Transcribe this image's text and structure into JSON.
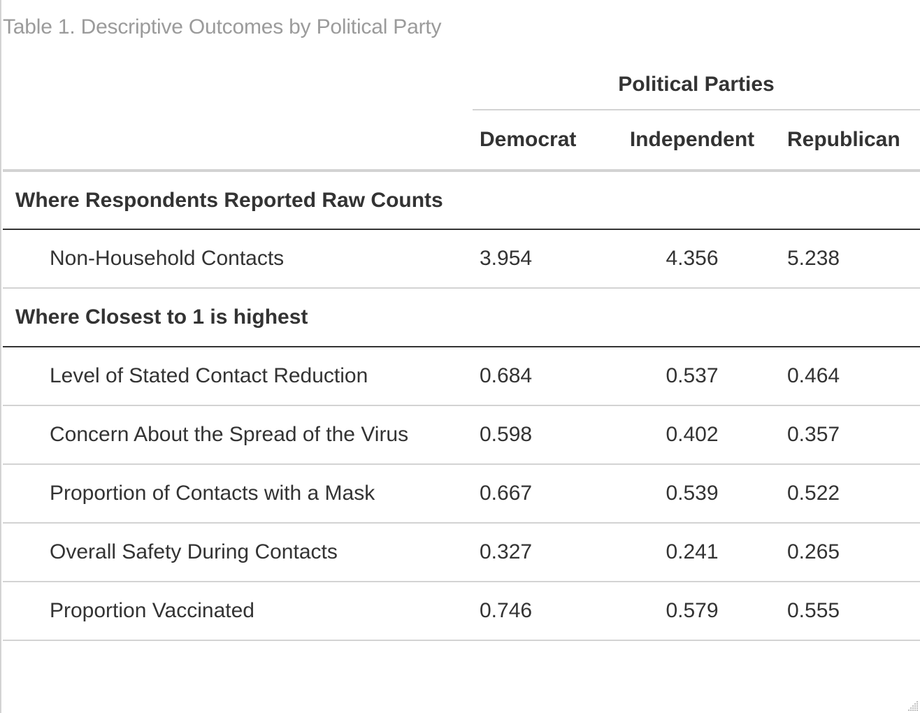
{
  "caption": "Table 1. Descriptive Outcomes by Political Party",
  "table": {
    "spanner": "Political Parties",
    "columns": [
      "Democrat",
      "Independent",
      "Republican"
    ],
    "groups": [
      {
        "label": "Where Respondents Reported Raw Counts",
        "rows": [
          {
            "label": "Non-Household Contacts",
            "values": [
              "3.954",
              "4.356",
              "5.238"
            ]
          }
        ]
      },
      {
        "label": "Where Closest to 1 is highest",
        "rows": [
          {
            "label": "Level of Stated Contact Reduction",
            "values": [
              "0.684",
              "0.537",
              "0.464"
            ]
          },
          {
            "label": "Concern About the Spread of the Virus",
            "values": [
              "0.598",
              "0.402",
              "0.357"
            ]
          },
          {
            "label": "Proportion of Contacts with a Mask",
            "values": [
              "0.667",
              "0.539",
              "0.522"
            ]
          },
          {
            "label": "Overall Safety During Contacts",
            "values": [
              "0.327",
              "0.241",
              "0.265"
            ]
          },
          {
            "label": "Proportion Vaccinated",
            "values": [
              "0.746",
              "0.579",
              "0.555"
            ]
          }
        ]
      }
    ]
  },
  "colors": {
    "text": "#333333",
    "caption": "#9b9b9b",
    "rule_light": "#d3d3d3",
    "rule_dark": "#333333"
  }
}
